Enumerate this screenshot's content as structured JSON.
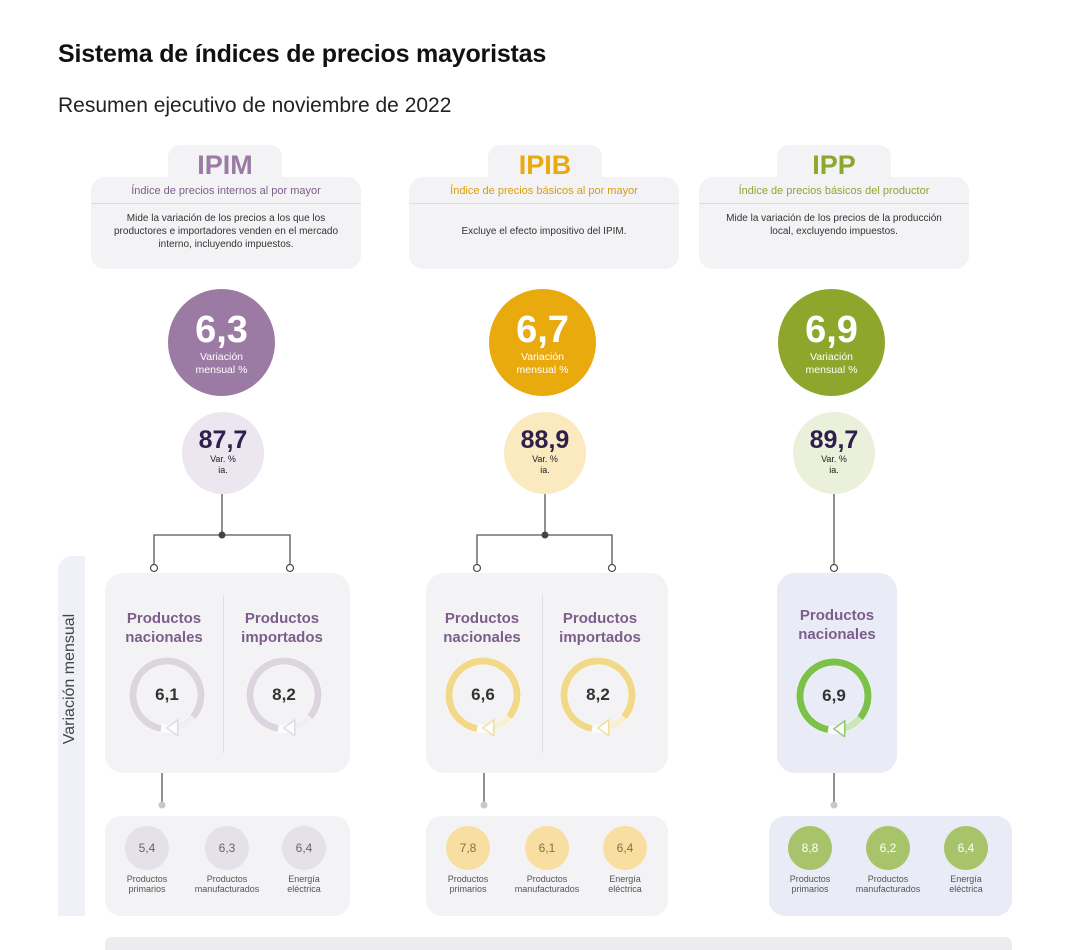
{
  "title": "Sistema de índices de precios mayoristas",
  "subtitle": "Resumen ejecutivo de noviembre de 2022",
  "side_label": "Variación mensual",
  "indices": [
    {
      "tab": "IPIM",
      "full_name": "Índice de precios internos al por mayor",
      "description": "Mide la variación de los precios a los que los productores e importadores venden en el mercado interno, incluyendo impuestos.",
      "monthly_value": "6,3",
      "monthly_label_1": "Variación",
      "monthly_label_2": "mensual %",
      "yoy_value": "87,7",
      "yoy_label_1": "Var. %",
      "yoy_label_2": "ia.",
      "colors": {
        "main": "#9b7aa3",
        "light": "#ebe6ef",
        "text": "#7d5d8a",
        "ring": "#dcd5e0"
      },
      "products": [
        {
          "title_1": "Productos",
          "title_2": "nacionales",
          "value": "6,1",
          "fraction": 0.061
        },
        {
          "title_1": "Productos",
          "title_2": "importados",
          "value": "8,2",
          "fraction": 0.082
        }
      ],
      "components": [
        {
          "value": "5,4",
          "label_1": "Productos",
          "label_2": "primarios"
        },
        {
          "value": "6,3",
          "label_1": "Productos",
          "label_2": "manufacturados"
        },
        {
          "value": "6,4",
          "label_1": "Energía",
          "label_2": "eléctrica"
        }
      ]
    },
    {
      "tab": "IPIB",
      "full_name": "Índice de precios básicos al por mayor",
      "description": "Excluye el efecto impositivo del IPIM.",
      "monthly_value": "6,7",
      "monthly_label_1": "Variación",
      "monthly_label_2": "mensual %",
      "yoy_value": "88,9",
      "yoy_label_1": "Var. %",
      "yoy_label_2": "ia.",
      "colors": {
        "main": "#e9aa0e",
        "light": "#fbe9c0",
        "text": "#d89d0c",
        "ring": "#f2d98a"
      },
      "products": [
        {
          "title_1": "Productos",
          "title_2": "nacionales",
          "value": "6,6",
          "fraction": 0.066
        },
        {
          "title_1": "Productos",
          "title_2": "importados",
          "value": "8,2",
          "fraction": 0.082
        }
      ],
      "components": [
        {
          "value": "7,8",
          "label_1": "Productos",
          "label_2": "primarios"
        },
        {
          "value": "6,1",
          "label_1": "Productos",
          "label_2": "manufacturados"
        },
        {
          "value": "6,4",
          "label_1": "Energía",
          "label_2": "eléctrica"
        }
      ]
    },
    {
      "tab": "IPP",
      "full_name": "Índice de precios básicos del productor",
      "description": "Mide la variación de los precios de la producción local, excluyendo impuestos.",
      "monthly_value": "6,9",
      "monthly_label_1": "Variación",
      "monthly_label_2": "mensual %",
      "yoy_value": "89,7",
      "yoy_label_1": "Var. %",
      "yoy_label_2": "ia.",
      "colors": {
        "main": "#8da62b",
        "light": "#eaf0da",
        "text": "#8fa630",
        "ring": "#7cc24a"
      },
      "products": [
        {
          "title_1": "Productos",
          "title_2": "nacionales",
          "value": "6,9",
          "fraction": 0.069
        }
      ],
      "components": [
        {
          "value": "8,8",
          "label_1": "Productos",
          "label_2": "primarios"
        },
        {
          "value": "6,2",
          "label_1": "Productos",
          "label_2": "manufacturados"
        },
        {
          "value": "6,4",
          "label_1": "Energía",
          "label_2": "eléctrica"
        }
      ]
    }
  ]
}
